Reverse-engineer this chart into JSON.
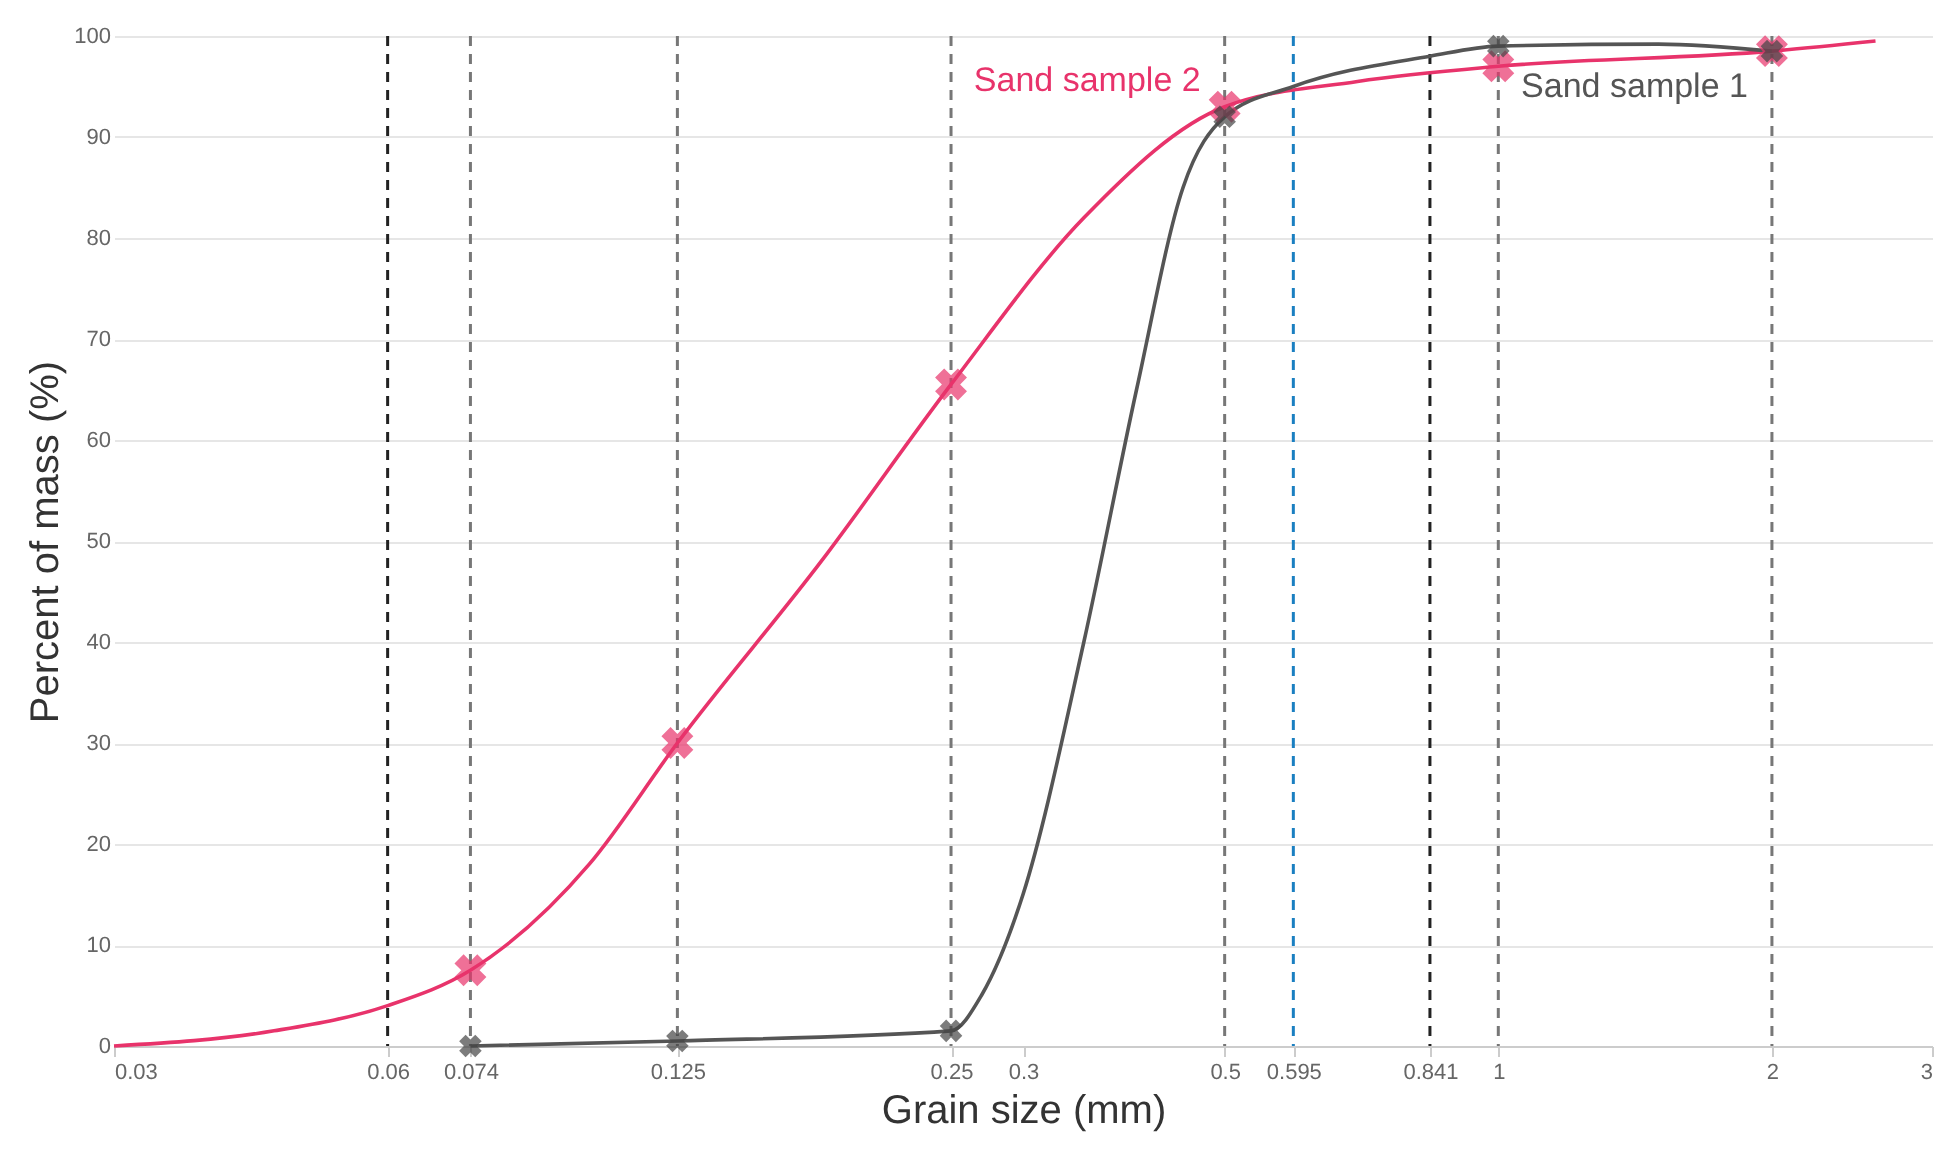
{
  "chart_data": {
    "type": "line",
    "xlabel": "Grain size (mm)",
    "ylabel": "Percent of mass (%)",
    "log": "x",
    "xlim": [
      0.03,
      3
    ],
    "xticks": [
      0.03,
      0.06,
      0.074,
      0.125,
      0.25,
      0.3,
      0.5,
      0.595,
      0.841,
      1,
      2,
      3
    ],
    "ylim": [
      0,
      100
    ],
    "yticks": [
      0,
      10,
      20,
      30,
      40,
      50,
      60,
      70,
      80,
      90,
      100
    ],
    "grid": "y",
    "series": [
      {
        "name": "Sand sample 2",
        "color": "#e8336b",
        "marker": "none",
        "x": [
          0.03,
          0.045,
          0.06,
          0.074,
          0.1,
          0.125,
          0.18,
          0.25,
          0.35,
          0.5,
          0.7,
          1,
          2,
          2.6
        ],
        "values": [
          0,
          1.5,
          4,
          7.5,
          18,
          30,
          48,
          65.5,
          82,
          93,
          95.5,
          97,
          98.5,
          99.5
        ]
      },
      {
        "name": "Sand sample 1",
        "color": "#555555",
        "marker": "none",
        "x": [
          0.074,
          0.125,
          0.25,
          0.27,
          0.3,
          0.35,
          0.4,
          0.45,
          0.5,
          0.595,
          0.841,
          1,
          1.5,
          2
        ],
        "values": [
          0,
          0.5,
          1.5,
          5,
          15,
          40,
          65,
          85,
          92,
          95,
          98,
          99,
          99.2,
          98.5
        ]
      },
      {
        "type": "scatter",
        "color": "#e8336b",
        "marker": "cross",
        "x": [
          0.074,
          0.125,
          0.25,
          0.5,
          1,
          2
        ],
        "values": [
          7.5,
          30,
          65.5,
          93,
          97,
          98.5
        ]
      },
      {
        "type": "scatter",
        "color": "#444444",
        "marker": "cross",
        "x": [
          0.074,
          0.125,
          0.25,
          0.5,
          1,
          2
        ],
        "values": [
          0,
          0.5,
          1.5,
          92,
          99,
          98.5
        ]
      }
    ],
    "ref_lines": [
      {
        "axis": "x",
        "value": 0.06,
        "color": "#222222",
        "line_style": "dashed"
      },
      {
        "axis": "x",
        "value": 0.074,
        "color": "#777777",
        "line_style": "dashed"
      },
      {
        "axis": "x",
        "value": 0.125,
        "color": "#777777",
        "line_style": "dashed"
      },
      {
        "axis": "x",
        "value": 0.25,
        "color": "#777777",
        "line_style": "dashed"
      },
      {
        "axis": "x",
        "value": 0.5,
        "color": "#777777",
        "line_style": "dashed"
      },
      {
        "axis": "x",
        "value": 0.595,
        "color": "#1a7fc1",
        "line_style": "dashed"
      },
      {
        "axis": "x",
        "value": 0.841,
        "color": "#222222",
        "line_style": "dashed"
      },
      {
        "axis": "x",
        "value": 1,
        "color": "#777777",
        "line_style": "dashed"
      },
      {
        "axis": "x",
        "value": 2,
        "color": "#777777",
        "line_style": "dashed"
      }
    ]
  }
}
